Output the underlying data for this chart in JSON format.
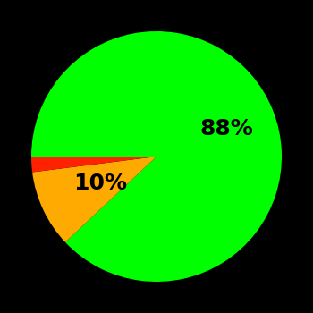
{
  "slices": [
    88,
    10,
    2
  ],
  "colors": [
    "#00ff00",
    "#ffaa00",
    "#ff2200"
  ],
  "labels": [
    "88%",
    "10%",
    ""
  ],
  "background_color": "#000000",
  "startangle": 180,
  "counterclock": false,
  "label_fontsize": 18,
  "label_fontweight": "bold",
  "label_color": "#000000",
  "label_positions": [
    {
      "r": 0.6,
      "slice_index": 0
    },
    {
      "r": 0.55,
      "slice_index": 1
    }
  ]
}
